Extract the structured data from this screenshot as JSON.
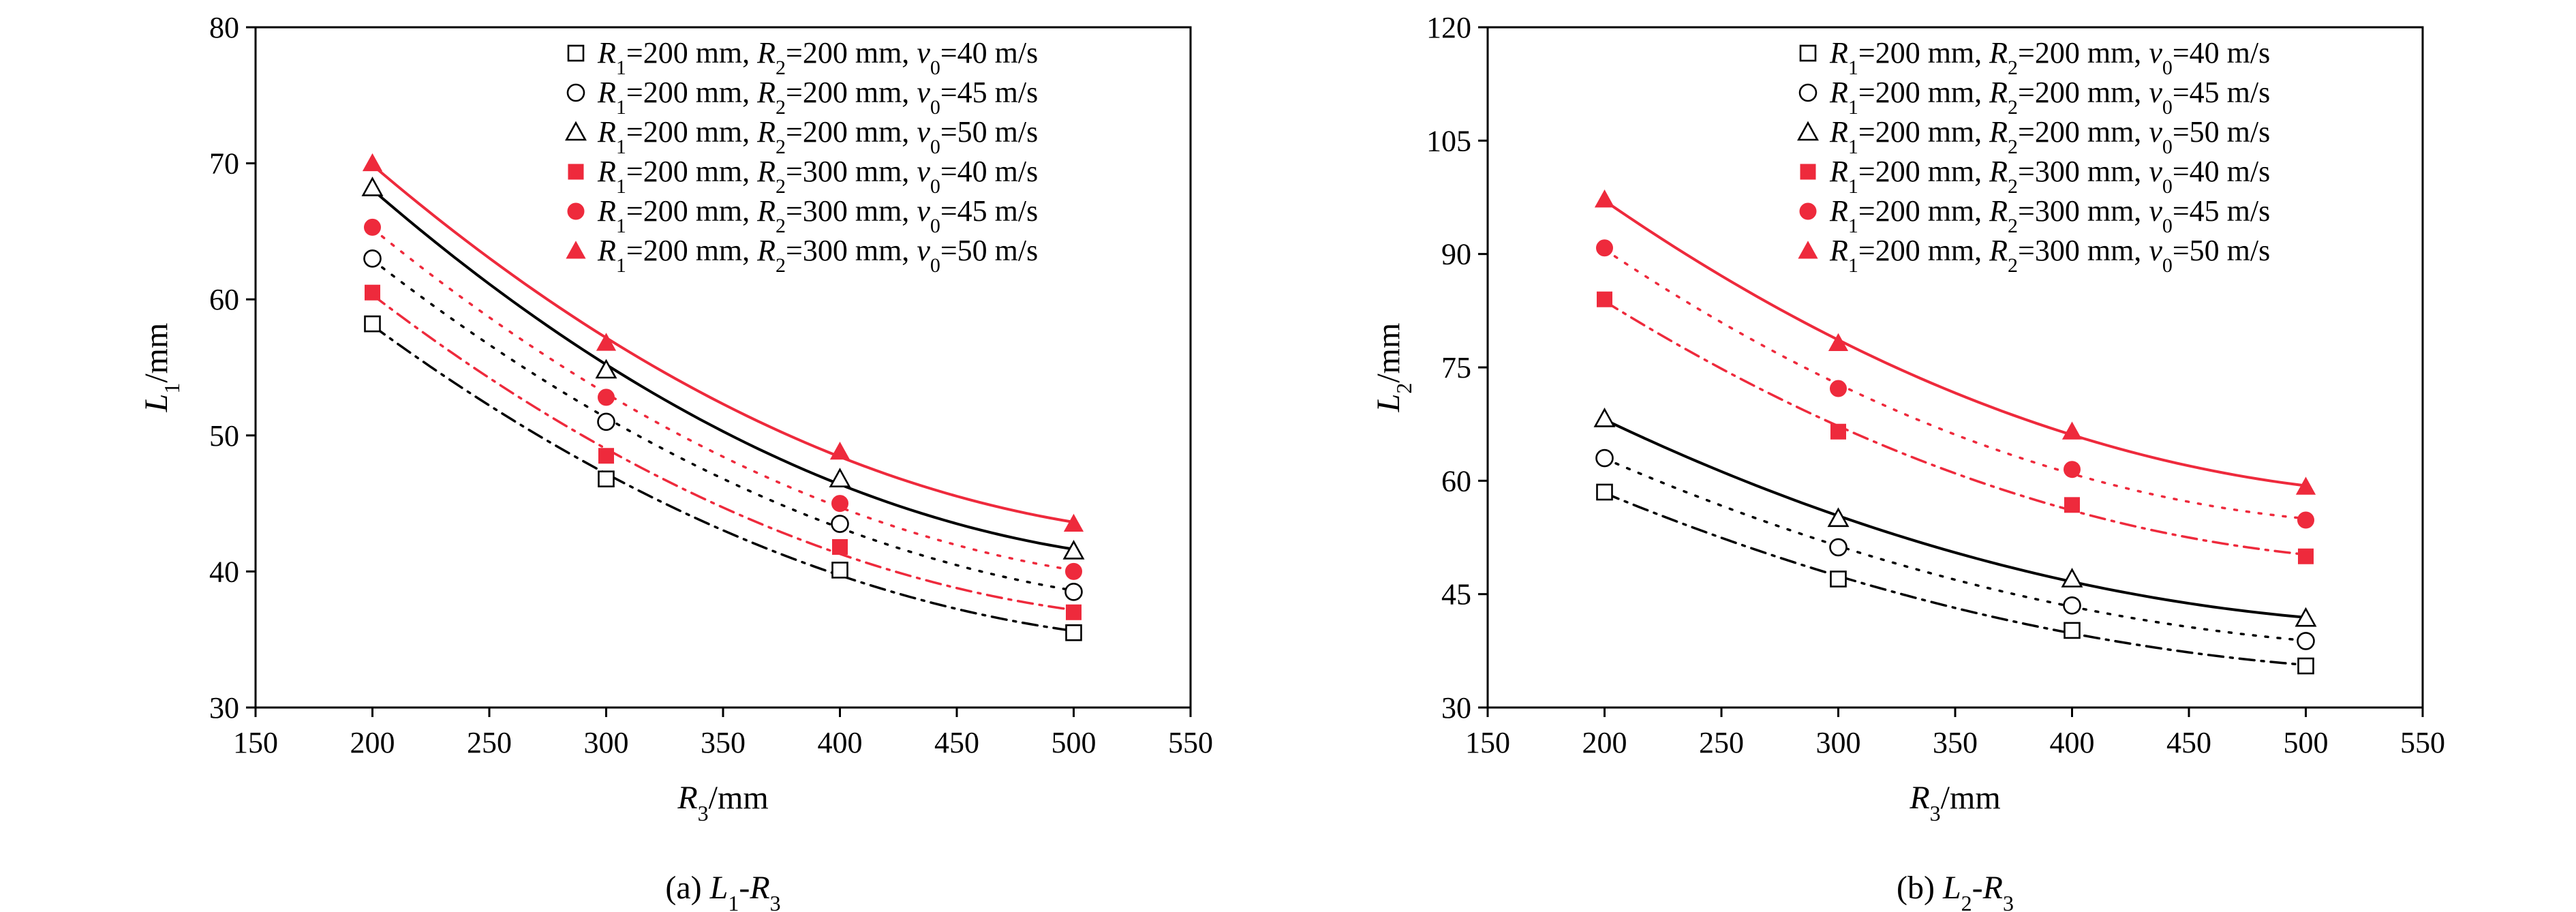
{
  "colors": {
    "black": "#000000",
    "red": "#ee2a3c"
  },
  "legend": [
    {
      "r2": "200",
      "v0": "40",
      "color": "black",
      "marker": "square-open",
      "line": "dashdot"
    },
    {
      "r2": "200",
      "v0": "45",
      "color": "black",
      "marker": "circle-open",
      "line": "dotted"
    },
    {
      "r2": "200",
      "v0": "50",
      "color": "black",
      "marker": "triangle-open",
      "line": "solid"
    },
    {
      "r2": "300",
      "v0": "40",
      "color": "red",
      "marker": "square-filled",
      "line": "dashdot"
    },
    {
      "r2": "300",
      "v0": "45",
      "color": "red",
      "marker": "circle-filled",
      "line": "dotted"
    },
    {
      "r2": "300",
      "v0": "50",
      "color": "red",
      "marker": "triangle-filled",
      "line": "solid"
    }
  ],
  "legend_text": {
    "r1_value": "200",
    "unit_mm": " mm",
    "unit_ms": " m/s"
  },
  "chart_data": [
    {
      "type": "scatter",
      "id": "a",
      "caption_prefix": "(a) ",
      "caption_y": "L",
      "caption_y_sub": "1",
      "caption_sep": "-",
      "caption_x": "R",
      "caption_x_sub": "3",
      "xlabel": "R",
      "xlabel_sub": "3",
      "xlabel_unit": "/mm",
      "ylabel": "L",
      "ylabel_sub": "1",
      "ylabel_unit": "/mm",
      "xlim": [
        150,
        550
      ],
      "ylim": [
        30,
        80
      ],
      "xticks": [
        150,
        200,
        250,
        300,
        350,
        400,
        450,
        500,
        550
      ],
      "yticks": [
        30,
        40,
        50,
        60,
        70,
        80
      ],
      "x": [
        200,
        300,
        400,
        500
      ],
      "series": [
        {
          "values": [
            58.2,
            46.8,
            40.1,
            35.5
          ]
        },
        {
          "values": [
            63.0,
            51.0,
            43.5,
            38.5
          ]
        },
        {
          "values": [
            68.2,
            54.8,
            46.8,
            41.5
          ]
        },
        {
          "values": [
            60.5,
            48.5,
            41.8,
            37.0
          ]
        },
        {
          "values": [
            65.3,
            52.8,
            45.0,
            40.0
          ]
        },
        {
          "values": [
            70.0,
            56.8,
            48.8,
            43.5
          ]
        }
      ]
    },
    {
      "type": "scatter",
      "id": "b",
      "caption_prefix": "(b) ",
      "caption_y": "L",
      "caption_y_sub": "2",
      "caption_sep": "-",
      "caption_x": "R",
      "caption_x_sub": "3",
      "xlabel": "R",
      "xlabel_sub": "3",
      "xlabel_unit": "/mm",
      "ylabel": "L",
      "ylabel_sub": "2",
      "ylabel_unit": "/mm",
      "xlim": [
        150,
        550
      ],
      "ylim": [
        30,
        120
      ],
      "xticks": [
        150,
        200,
        250,
        300,
        350,
        400,
        450,
        500,
        550
      ],
      "yticks": [
        30,
        45,
        60,
        75,
        90,
        105,
        120
      ],
      "x": [
        200,
        300,
        400,
        500
      ],
      "series": [
        {
          "values": [
            58.5,
            47.0,
            40.2,
            35.5
          ]
        },
        {
          "values": [
            63.0,
            51.2,
            43.5,
            38.8
          ]
        },
        {
          "values": [
            68.2,
            55.0,
            47.0,
            41.8
          ]
        },
        {
          "values": [
            84.0,
            66.5,
            56.8,
            50.0
          ]
        },
        {
          "values": [
            90.8,
            72.2,
            61.5,
            54.8
          ]
        },
        {
          "values": [
            97.2,
            78.2,
            66.5,
            59.2
          ]
        }
      ]
    }
  ]
}
